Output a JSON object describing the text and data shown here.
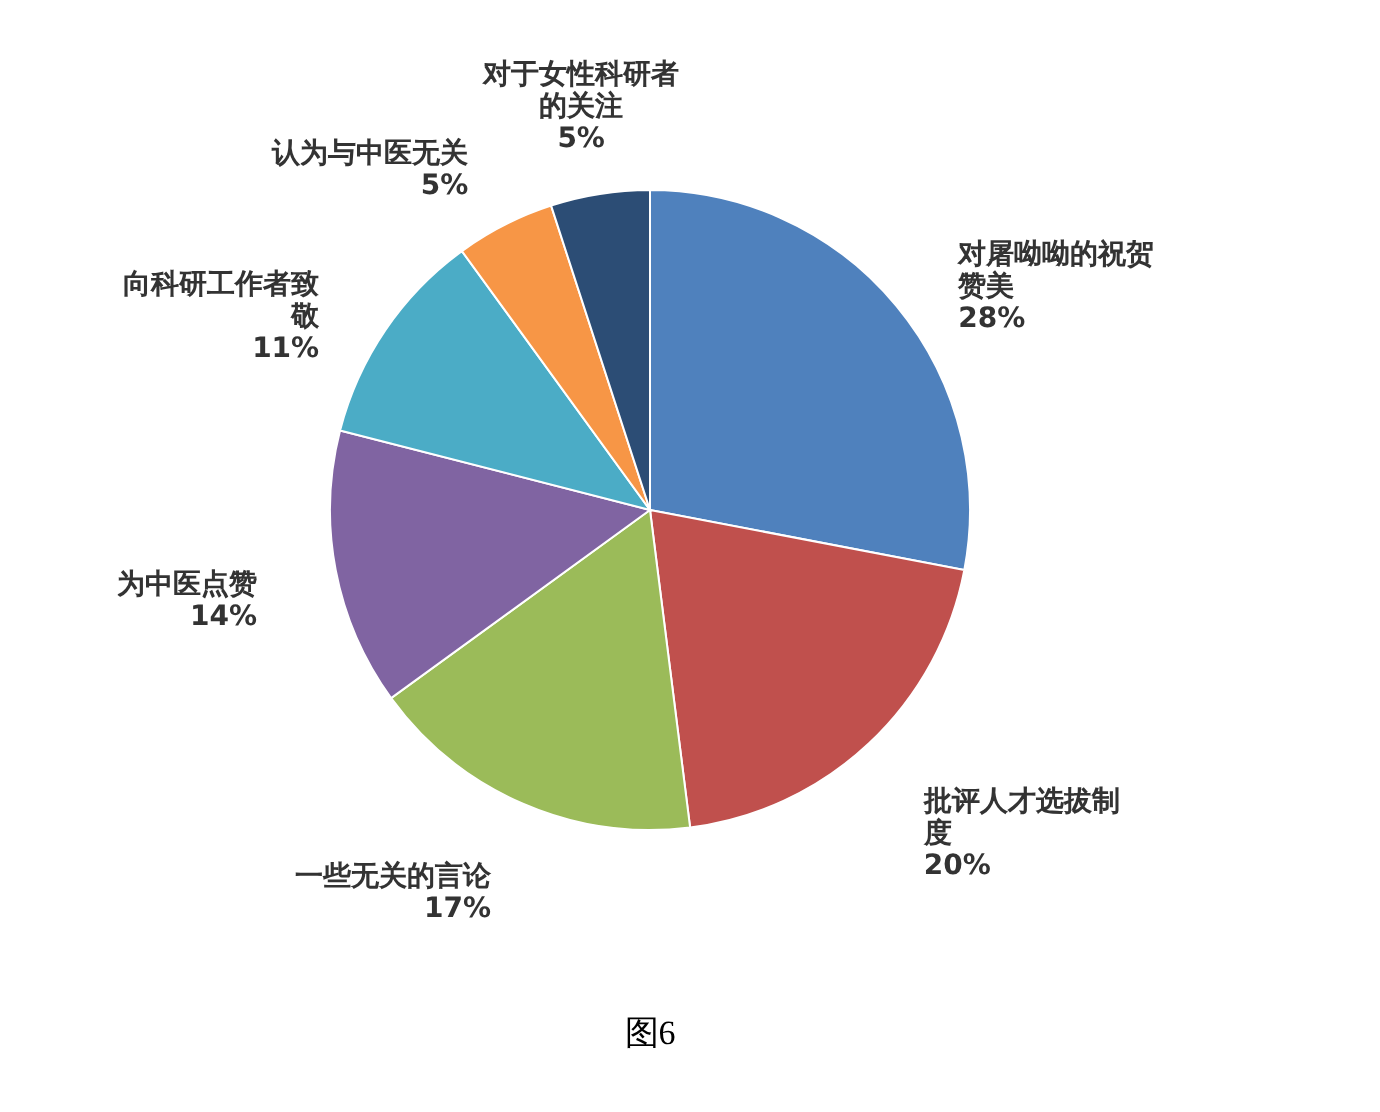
{
  "chart_data": {
    "type": "pie",
    "categories": [
      "对屠呦呦的祝贺赞美",
      "批评人才选拔制度",
      "一些无关的言论",
      "为中医点赞",
      "向科研工作者致敬",
      "认为与中医无关",
      "对于女性科研者的关注"
    ],
    "values": [
      28,
      20,
      17,
      14,
      11,
      5,
      5
    ],
    "value_labels": [
      "28%",
      "20%",
      "17%",
      "14%",
      "11%",
      "5%",
      "5%"
    ],
    "colors": [
      "#4f81bd",
      "#c0504d",
      "#9bbb59",
      "#8064a2",
      "#4bacc6",
      "#f79646",
      "#2c4d75"
    ],
    "legend": false,
    "annotations": [
      "图6"
    ]
  }
}
